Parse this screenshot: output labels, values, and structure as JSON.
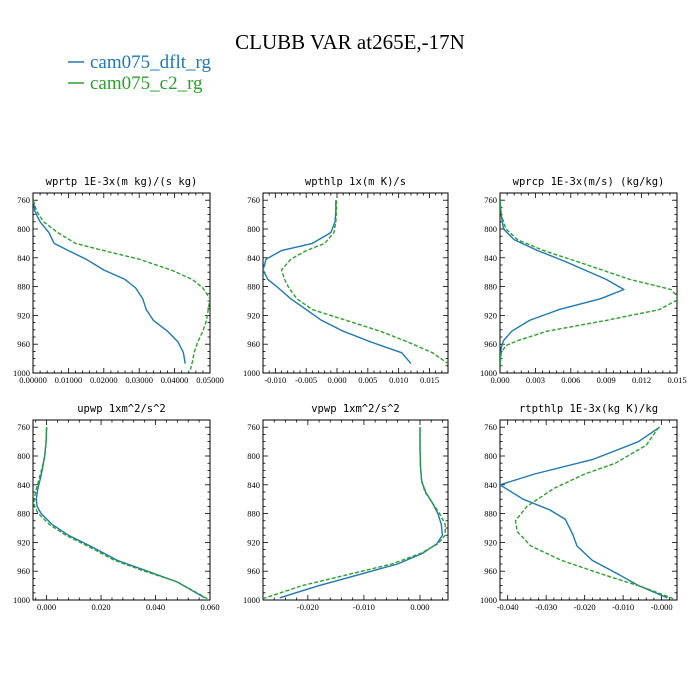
{
  "title": "CLUBB VAR at265E,-17N",
  "legend": [
    {
      "name": "cam075_dflt_rg",
      "color": "#1f77b4",
      "dash": "solid"
    },
    {
      "name": "cam075_c2_rg",
      "color": "#2ca02c",
      "dash": "dashed"
    }
  ],
  "chart_data": [
    {
      "type": "line",
      "title": "wprtp  1E-3x(m kg)/(s kg)",
      "xlim": [
        0,
        0.05
      ],
      "ylim": [
        1000,
        750
      ],
      "xticks": [
        0,
        0.01,
        0.02,
        0.03,
        0.04,
        0.05
      ],
      "xtick_labels": [
        "0.00000",
        "0.01000",
        "0.02000",
        "0.03000",
        "0.04000",
        "0.05000"
      ],
      "yticks": [
        760,
        800,
        840,
        880,
        920,
        960,
        1000
      ],
      "series": [
        {
          "name": "cam075_dflt_rg",
          "x": [
            0.0001,
            0.0005,
            0.002,
            0.0045,
            0.006,
            0.01,
            0.015,
            0.02,
            0.026,
            0.029,
            0.031,
            0.032,
            0.034,
            0.038,
            0.041,
            0.0425,
            0.043
          ],
          "y": [
            760,
            775,
            790,
            805,
            820,
            830,
            842,
            857,
            870,
            882,
            897,
            912,
            927,
            942,
            957,
            972,
            987
          ]
        },
        {
          "name": "cam075_c2_rg",
          "x": [
            0.0001,
            0.001,
            0.003,
            0.007,
            0.012,
            0.02,
            0.03,
            0.039,
            0.045,
            0.048,
            0.05,
            0.0495,
            0.049,
            0.048,
            0.0465,
            0.0455,
            0.045,
            0.0445
          ],
          "y": [
            760,
            775,
            790,
            805,
            820,
            830,
            842,
            857,
            870,
            882,
            897,
            912,
            927,
            942,
            957,
            972,
            985,
            995
          ]
        }
      ]
    },
    {
      "type": "line",
      "title": "wpthlp  1x(m K)/s",
      "xlim": [
        -0.012,
        0.018
      ],
      "ylim": [
        1000,
        750
      ],
      "xticks": [
        -0.01,
        -0.005,
        0,
        0.005,
        0.01,
        0.015
      ],
      "xtick_labels": [
        "-0.010",
        "-0.005",
        "0.000",
        "0.005",
        "0.010",
        "0.015"
      ],
      "yticks": [
        760,
        800,
        840,
        880,
        920,
        960,
        1000
      ],
      "series": [
        {
          "name": "cam075_dflt_rg",
          "x": [
            -0.0002,
            -0.0002,
            -0.0003,
            -0.001,
            -0.004,
            -0.009,
            -0.0115,
            -0.012,
            -0.0112,
            -0.0095,
            -0.0075,
            -0.005,
            -0.0025,
            0.001,
            0.0055,
            0.0105,
            0.012
          ],
          "y": [
            760,
            775,
            790,
            805,
            820,
            830,
            842,
            857,
            870,
            882,
            897,
            912,
            927,
            942,
            957,
            972,
            987
          ]
        },
        {
          "name": "cam075_c2_rg",
          "x": [
            -0.0001,
            -0.0001,
            -0.0002,
            -0.0005,
            -0.002,
            -0.005,
            -0.0075,
            -0.009,
            -0.0085,
            -0.0078,
            -0.0065,
            -0.004,
            0.0015,
            0.007,
            0.0115,
            0.0155,
            0.018
          ],
          "y": [
            760,
            775,
            790,
            805,
            820,
            830,
            842,
            857,
            870,
            882,
            897,
            912,
            927,
            942,
            957,
            972,
            987
          ]
        }
      ]
    },
    {
      "type": "line",
      "title": "wprcp  1E-3x(m/s) (kg/kg)",
      "xlim": [
        0,
        0.015
      ],
      "ylim": [
        1000,
        750
      ],
      "xticks": [
        0,
        0.003,
        0.006,
        0.009,
        0.012,
        0.015
      ],
      "xtick_labels": [
        "0.000",
        "0.003",
        "0.006",
        "0.009",
        "0.012",
        "0.015"
      ],
      "yticks": [
        760,
        800,
        840,
        880,
        920,
        960,
        1000
      ],
      "series": [
        {
          "name": "cam075_dflt_rg",
          "x": [
            0,
            0.0001,
            0.0003,
            0.0012,
            0.0032,
            0.0055,
            0.009,
            0.0105,
            0.0085,
            0.005,
            0.0025,
            0.001,
            0.0003,
            0.0001,
            0
          ],
          "y": [
            760,
            780,
            800,
            815,
            830,
            845,
            870,
            884,
            897,
            912,
            927,
            942,
            955,
            965,
            990
          ]
        },
        {
          "name": "cam075_c2_rg",
          "x": [
            0,
            0.0001,
            0.0005,
            0.0015,
            0.0037,
            0.0065,
            0.011,
            0.0145,
            0.0152,
            0.0135,
            0.009,
            0.004,
            0.0015,
            0.0005,
            0.0001,
            0
          ],
          "y": [
            760,
            780,
            800,
            815,
            830,
            845,
            870,
            884,
            897,
            912,
            927,
            942,
            955,
            962,
            972,
            990
          ]
        }
      ]
    },
    {
      "type": "line",
      "title": "upwp  1xm^2/s^2",
      "xlim": [
        -0.005,
        0.06
      ],
      "ylim": [
        1000,
        750
      ],
      "xticks": [
        0,
        0.02,
        0.04,
        0.06
      ],
      "xtick_labels": [
        "0.000",
        "0.020",
        "0.040",
        "0.060"
      ],
      "yticks": [
        760,
        800,
        840,
        880,
        920,
        960,
        1000
      ],
      "series": [
        {
          "name": "cam075_dflt_rg",
          "x": [
            0,
            -0.0002,
            -0.0007,
            -0.0014,
            -0.0022,
            -0.0032,
            -0.0038,
            -0.0035,
            -0.002,
            0.002,
            0.008,
            0.016,
            0.026,
            0.037,
            0.048,
            0.058
          ],
          "y": [
            760,
            780,
            800,
            815,
            830,
            845,
            860,
            870,
            880,
            895,
            910,
            925,
            945,
            960,
            975,
            997
          ]
        },
        {
          "name": "cam075_c2_rg",
          "x": [
            0,
            -0.0002,
            -0.0007,
            -0.0016,
            -0.0026,
            -0.0037,
            -0.0046,
            -0.0045,
            -0.003,
            0.001,
            0.007,
            0.015,
            0.025,
            0.036,
            0.048,
            0.059
          ],
          "y": [
            760,
            780,
            800,
            815,
            830,
            845,
            860,
            870,
            880,
            895,
            910,
            925,
            945,
            960,
            975,
            998
          ]
        }
      ]
    },
    {
      "type": "line",
      "title": "vpwp  1xm^2/s^2",
      "xlim": [
        -0.028,
        0.005
      ],
      "ylim": [
        1000,
        750
      ],
      "xticks": [
        -0.02,
        -0.01,
        0
      ],
      "xtick_labels": [
        "-0.020",
        "-0.010",
        "0.000"
      ],
      "yticks": [
        760,
        800,
        840,
        880,
        920,
        960,
        1000
      ],
      "series": [
        {
          "name": "cam075_dflt_rg",
          "x": [
            0,
            0,
            0.0001,
            0.0003,
            0.001,
            0.0022,
            0.0032,
            0.0038,
            0.004,
            0.003,
            0.0005,
            -0.004,
            -0.011,
            -0.018,
            -0.025
          ],
          "y": [
            760,
            790,
            815,
            835,
            850,
            865,
            880,
            895,
            910,
            922,
            935,
            950,
            965,
            980,
            997
          ]
        },
        {
          "name": "cam075_c2_rg",
          "x": [
            0,
            0,
            0.0001,
            0.0003,
            0.0009,
            0.0022,
            0.0035,
            0.0045,
            0.0045,
            0.0032,
            0.0002,
            -0.005,
            -0.013,
            -0.021,
            -0.028
          ],
          "y": [
            760,
            790,
            815,
            835,
            850,
            865,
            880,
            895,
            910,
            922,
            935,
            950,
            965,
            980,
            998
          ]
        }
      ]
    },
    {
      "type": "line",
      "title": "rtpthlp  1E-3x(kg K)/kg",
      "xlim": [
        -0.042,
        0.004
      ],
      "ylim": [
        1000,
        750
      ],
      "xticks": [
        -0.04,
        -0.03,
        -0.02,
        -0.01,
        0
      ],
      "xtick_labels": [
        "-0.040",
        "-0.030",
        "-0.020",
        "-0.010",
        "-0.000"
      ],
      "yticks": [
        760,
        800,
        840,
        880,
        920,
        960,
        1000
      ],
      "series": [
        {
          "name": "cam075_dflt_rg",
          "x": [
            -0.0005,
            -0.006,
            -0.018,
            -0.033,
            -0.042,
            -0.036,
            -0.029,
            -0.025,
            -0.023,
            -0.022,
            -0.018,
            -0.011,
            -0.006,
            0.0015
          ],
          "y": [
            760,
            780,
            805,
            825,
            840,
            860,
            875,
            888,
            910,
            925,
            945,
            965,
            980,
            997
          ]
        },
        {
          "name": "cam075_c2_rg",
          "x": [
            -0.0007,
            -0.004,
            -0.012,
            -0.02,
            -0.028,
            -0.035,
            -0.038,
            -0.0375,
            -0.034,
            -0.026,
            -0.015,
            -0.005,
            0.003
          ],
          "y": [
            760,
            785,
            810,
            825,
            845,
            870,
            890,
            905,
            925,
            945,
            965,
            982,
            998
          ]
        }
      ]
    }
  ]
}
